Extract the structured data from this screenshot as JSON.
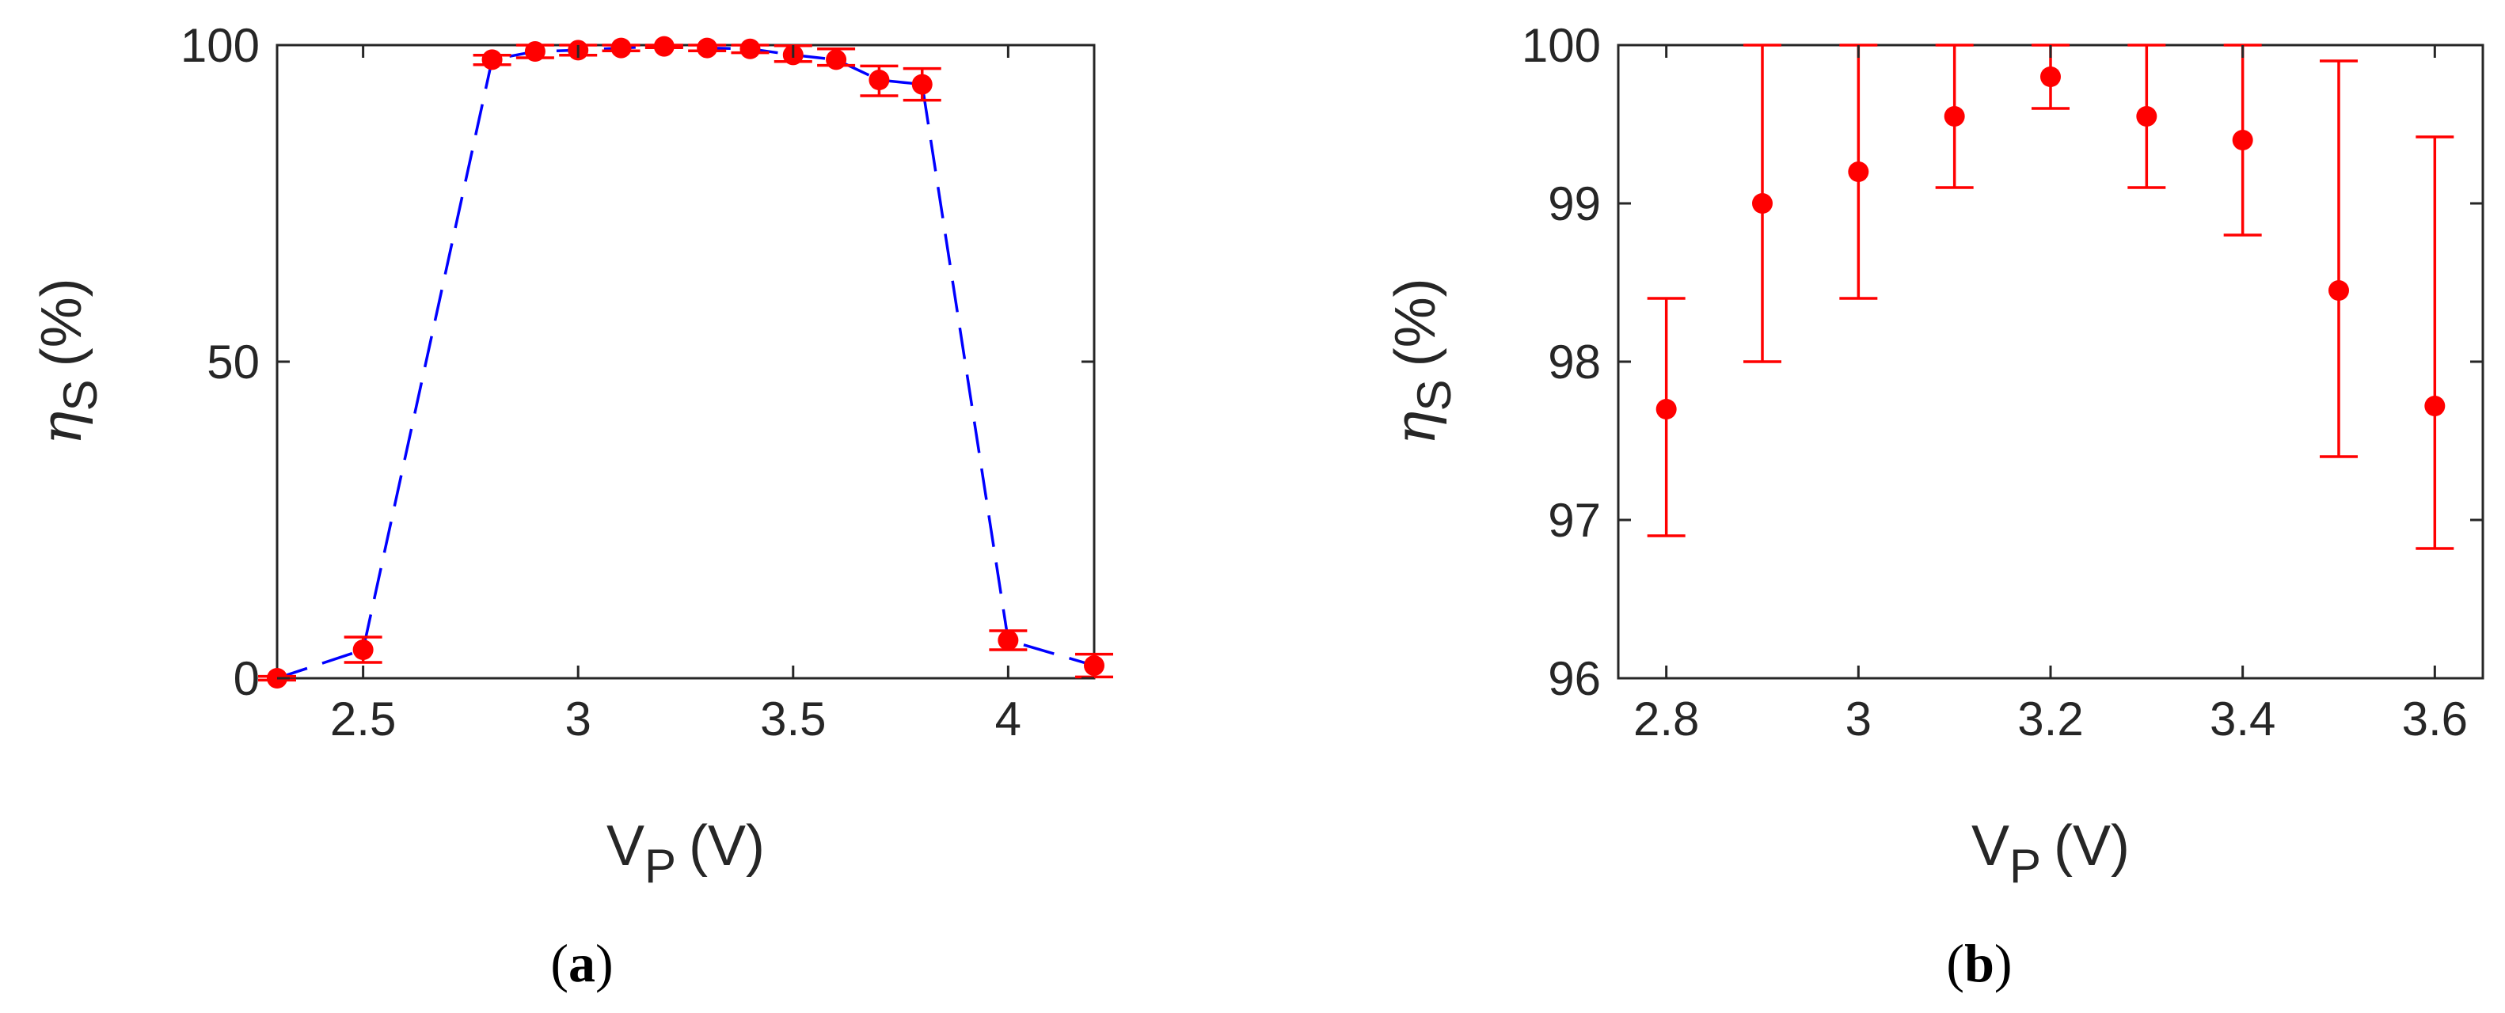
{
  "colors": {
    "marker": "#ff0000",
    "errorbar": "#ff0000",
    "line": "#0000ff",
    "axes": "#262626",
    "background": "#ffffff"
  },
  "chart_data": [
    {
      "panel_label": "a",
      "type": "scatter",
      "xlabel_main": "V",
      "xlabel_sub": "P",
      "xlabel_unit": "(V)",
      "ylabel_main": "η",
      "ylabel_sub": "S",
      "ylabel_unit": "(%)",
      "xlim": [
        2.3,
        4.2
      ],
      "ylim": [
        0,
        100
      ],
      "xticks": [
        2.5,
        3,
        3.5,
        4
      ],
      "xtick_labels": [
        "2.5",
        "3",
        "3.5",
        "4"
      ],
      "yticks": [
        0,
        50,
        100
      ],
      "ytick_labels": [
        "0",
        "50",
        "100"
      ],
      "grid": false,
      "series": [
        {
          "style": "dashed-line-with-markers-and-errorbars",
          "x": [
            2.3,
            2.5,
            2.8,
            2.9,
            3.0,
            3.1,
            3.2,
            3.3,
            3.4,
            3.5,
            3.6,
            3.7,
            3.8,
            4.0,
            4.2
          ],
          "y": [
            0,
            4.5,
            97.7,
            99.0,
            99.2,
            99.55,
            99.8,
            99.55,
            99.4,
            98.45,
            97.7,
            94.5,
            93.8,
            6.0,
            2.0
          ],
          "err_low": [
            0.3,
            2,
            0.8,
            1.0,
            0.8,
            0.45,
            0.2,
            0.45,
            0.6,
            1.05,
            0.9,
            2.5,
            2.5,
            1.5,
            1.8
          ],
          "err_high": [
            0.3,
            2,
            0.7,
            1.0,
            0.8,
            0.45,
            0.2,
            0.45,
            0.6,
            1.45,
            1.7,
            2.2,
            2.5,
            1.5,
            1.8
          ]
        }
      ]
    },
    {
      "panel_label": "b",
      "type": "scatter",
      "xlabel_main": "V",
      "xlabel_sub": "P",
      "xlabel_unit": "(V)",
      "ylabel_main": "η",
      "ylabel_sub": "S",
      "ylabel_unit": "(%)",
      "xlim": [
        2.75,
        3.65
      ],
      "ylim": [
        96,
        100
      ],
      "xticks": [
        2.8,
        3.0,
        3.2,
        3.4,
        3.6
      ],
      "xtick_labels": [
        "2.8",
        "3",
        "3.2",
        "3.4",
        "3.6"
      ],
      "yticks": [
        96,
        97,
        98,
        99,
        100
      ],
      "ytick_labels": [
        "96",
        "97",
        "98",
        "99",
        "100"
      ],
      "grid": false,
      "series": [
        {
          "style": "markers-with-errorbars",
          "x": [
            2.8,
            2.9,
            3.0,
            3.1,
            3.2,
            3.3,
            3.4,
            3.5,
            3.6
          ],
          "y": [
            97.7,
            99.0,
            99.2,
            99.55,
            99.8,
            99.55,
            99.4,
            98.45,
            97.72
          ],
          "err_low": [
            0.8,
            1.0,
            0.8,
            0.45,
            0.2,
            0.45,
            0.6,
            1.05,
            0.9
          ],
          "err_high": [
            0.7,
            1.0,
            0.8,
            0.45,
            0.2,
            0.45,
            0.6,
            1.45,
            1.7
          ]
        }
      ]
    }
  ]
}
